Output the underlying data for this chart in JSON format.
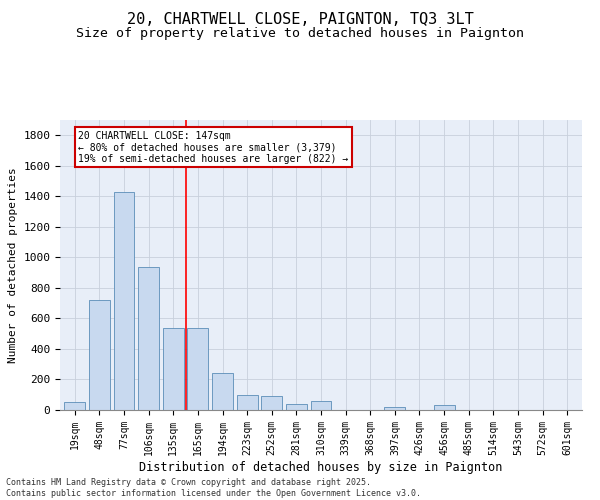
{
  "title": "20, CHARTWELL CLOSE, PAIGNTON, TQ3 3LT",
  "subtitle": "Size of property relative to detached houses in Paignton",
  "xlabel": "Distribution of detached houses by size in Paignton",
  "ylabel": "Number of detached properties",
  "categories": [
    "19sqm",
    "48sqm",
    "77sqm",
    "106sqm",
    "135sqm",
    "165sqm",
    "194sqm",
    "223sqm",
    "252sqm",
    "281sqm",
    "310sqm",
    "339sqm",
    "368sqm",
    "397sqm",
    "426sqm",
    "456sqm",
    "485sqm",
    "514sqm",
    "543sqm",
    "572sqm",
    "601sqm"
  ],
  "values": [
    50,
    720,
    1430,
    940,
    540,
    540,
    240,
    100,
    95,
    40,
    60,
    0,
    0,
    20,
    0,
    30,
    0,
    0,
    0,
    0,
    0
  ],
  "bar_color": "#c8d9ef",
  "bar_edge_color": "#5b8db8",
  "annotation_text": "20 CHARTWELL CLOSE: 147sqm\n← 80% of detached houses are smaller (3,379)\n19% of semi-detached houses are larger (822) →",
  "annotation_box_color": "#ffffff",
  "annotation_box_edge_color": "#cc0000",
  "red_line_index": 4.5,
  "ylim": [
    0,
    1900
  ],
  "yticks": [
    0,
    200,
    400,
    600,
    800,
    1000,
    1200,
    1400,
    1600,
    1800
  ],
  "grid_color": "#c8d0dc",
  "background_color": "#e8eef8",
  "footer": "Contains HM Land Registry data © Crown copyright and database right 2025.\nContains public sector information licensed under the Open Government Licence v3.0.",
  "title_fontsize": 11,
  "subtitle_fontsize": 9.5,
  "xlabel_fontsize": 8.5,
  "ylabel_fontsize": 8,
  "tick_fontsize": 7,
  "annotation_fontsize": 7,
  "footer_fontsize": 6
}
